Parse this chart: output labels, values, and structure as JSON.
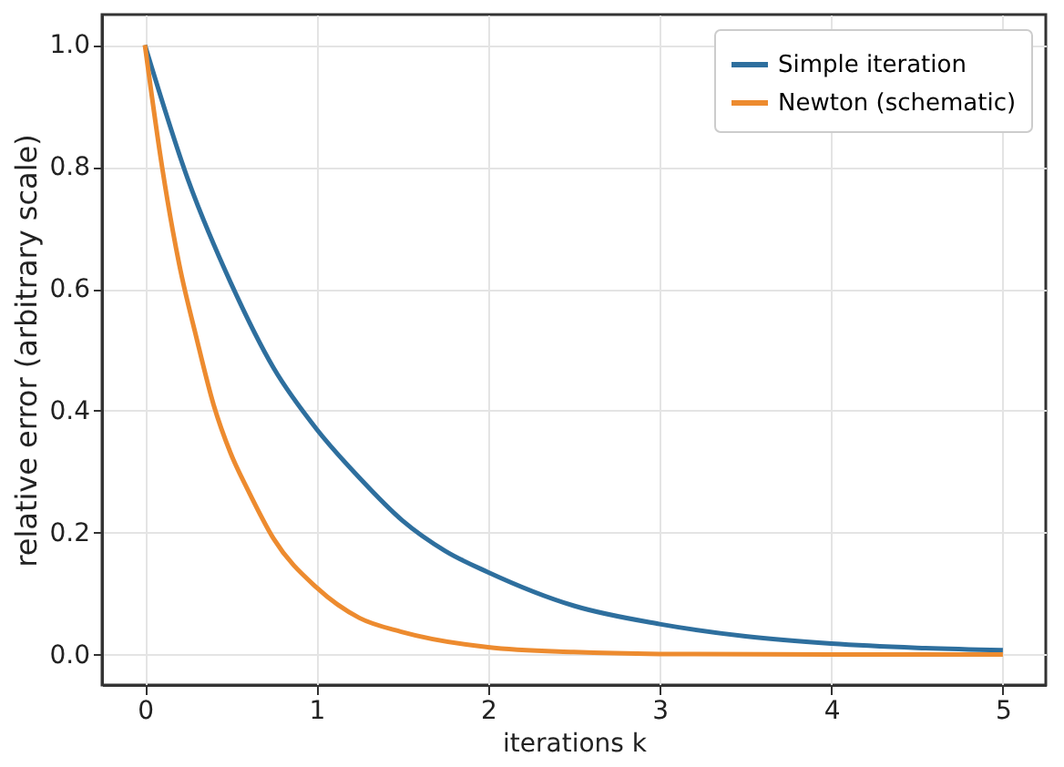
{
  "chart_data": {
    "type": "line",
    "xlabel": "iterations k",
    "ylabel": "relative error (arbitrary scale)",
    "series": [
      {
        "name": "Simple iteration",
        "color": "#2e6f9e",
        "x": [
          0,
          0.25,
          0.5,
          0.75,
          1,
          1.25,
          1.5,
          1.75,
          2,
          2.5,
          3,
          3.5,
          4,
          4.5,
          5
        ],
        "values": [
          1,
          0.78,
          0.61,
          0.47,
          0.37,
          0.29,
          0.22,
          0.17,
          0.135,
          0.08,
          0.05,
          0.03,
          0.018,
          0.011,
          0.007
        ]
      },
      {
        "name": "Newton (schematic)",
        "color": "#ed8b2f",
        "x": [
          0,
          0.1,
          0.2,
          0.3,
          0.4,
          0.5,
          0.6,
          0.75,
          1,
          1.25,
          1.5,
          2,
          2.5,
          3,
          4,
          5
        ],
        "values": [
          1,
          0.8,
          0.64,
          0.52,
          0.41,
          0.33,
          0.27,
          0.19,
          0.11,
          0.06,
          0.037,
          0.012,
          0.004,
          0.001,
          0,
          0
        ]
      }
    ],
    "xlim": [
      -0.25,
      5.25
    ],
    "xticks": [
      0,
      1,
      2,
      3,
      4,
      5
    ],
    "ylim": [
      -0.05,
      1.05
    ],
    "yticks": [
      {
        "value": 0,
        "label": "0.0"
      },
      0.2,
      0.4,
      0.6,
      0.8,
      {
        "value": 1,
        "label": "1.0"
      }
    ],
    "grid": true,
    "legend": "top right",
    "marker": "none",
    "line_style": "solid"
  }
}
